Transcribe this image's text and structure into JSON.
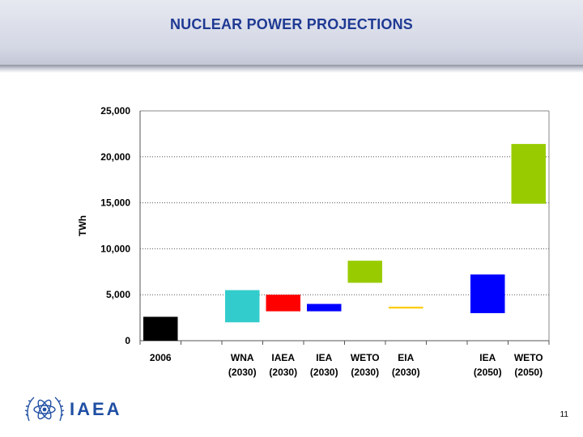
{
  "slide": {
    "title": "NUCLEAR POWER PROJECTIONS",
    "page_number": "11",
    "logo_text": "IAEA"
  },
  "colors": {
    "title": "#1f3a93",
    "logo": "#1f4fa3"
  },
  "chart_data": {
    "type": "bar",
    "subtype": "floating-range",
    "title": "",
    "xlabel": "",
    "ylabel": "TWh",
    "ylim": [
      0,
      25000
    ],
    "yticks": [
      0,
      5000,
      10000,
      15000,
      20000,
      25000
    ],
    "ytick_labels": [
      "0",
      "5,000",
      "10,000",
      "15,000",
      "20,000",
      "25,000"
    ],
    "grid": true,
    "slots": 10,
    "categories": [
      {
        "line1": "2006",
        "line2": "",
        "slot": 0,
        "low": 0,
        "high": 2600,
        "color": "#000000"
      },
      {
        "line1": "WNA",
        "line2": "(2030)",
        "slot": 2,
        "low": 2000,
        "high": 5500,
        "color": "#33cccc"
      },
      {
        "line1": "IAEA",
        "line2": "(2030)",
        "slot": 3,
        "low": 3200,
        "high": 5000,
        "color": "#ff0000"
      },
      {
        "line1": "IEA",
        "line2": "(2030)",
        "slot": 4,
        "low": 3200,
        "high": 4000,
        "color": "#0000ff"
      },
      {
        "line1": "WETO",
        "line2": "(2030)",
        "slot": 5,
        "low": 6300,
        "high": 8700,
        "color": "#99cc00"
      },
      {
        "line1": "EIA",
        "line2": "(2030)",
        "slot": 6,
        "low": 3500,
        "high": 3700,
        "color": "#ffcc00"
      },
      {
        "line1": "IEA",
        "line2": "(2050)",
        "slot": 8,
        "low": 3000,
        "high": 7200,
        "color": "#0000ff"
      },
      {
        "line1": "WETO",
        "line2": "(2050)",
        "slot": 9,
        "low": 14900,
        "high": 21400,
        "color": "#99cc00"
      }
    ]
  }
}
